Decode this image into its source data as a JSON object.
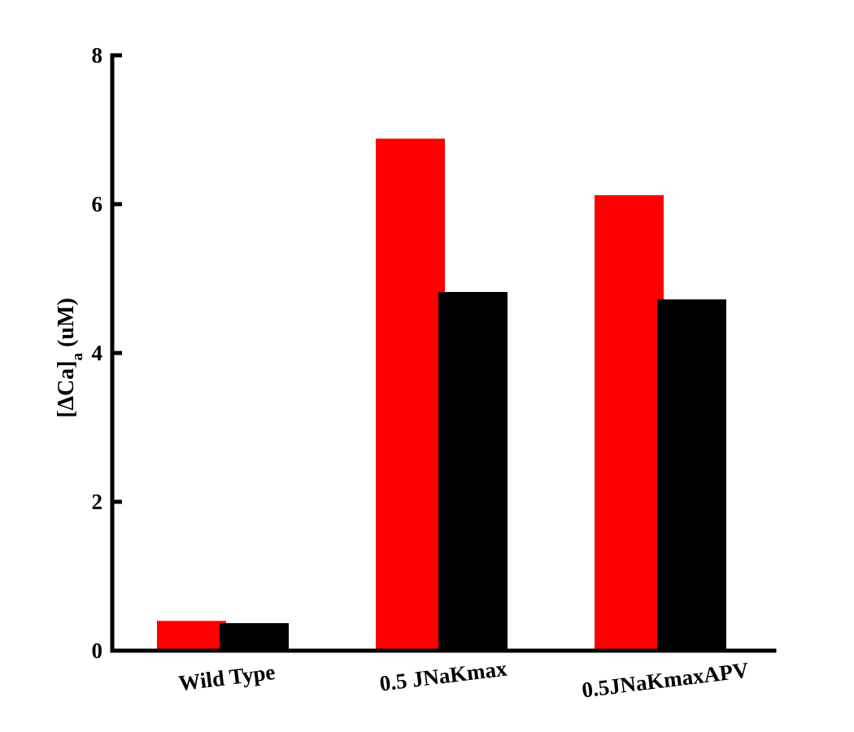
{
  "chart_data": {
    "type": "bar",
    "categories": [
      "Wild Type",
      "0.5 JNaKmax",
      "0.5JNaKmaxAPV"
    ],
    "series": [
      {
        "values": [
          0.4,
          6.88,
          6.12
        ],
        "color": "#ff0000"
      },
      {
        "values": [
          0.37,
          4.82,
          4.72
        ],
        "color": "#000000"
      }
    ],
    "ylabel": {
      "prefix": "[ΔCa]",
      "subscript": "a",
      "suffix": " (uM)"
    },
    "yticks": [
      "0",
      "2",
      "4",
      "6",
      "8"
    ],
    "ylim": [
      0,
      8
    ],
    "grid": false,
    "legend": "none"
  }
}
